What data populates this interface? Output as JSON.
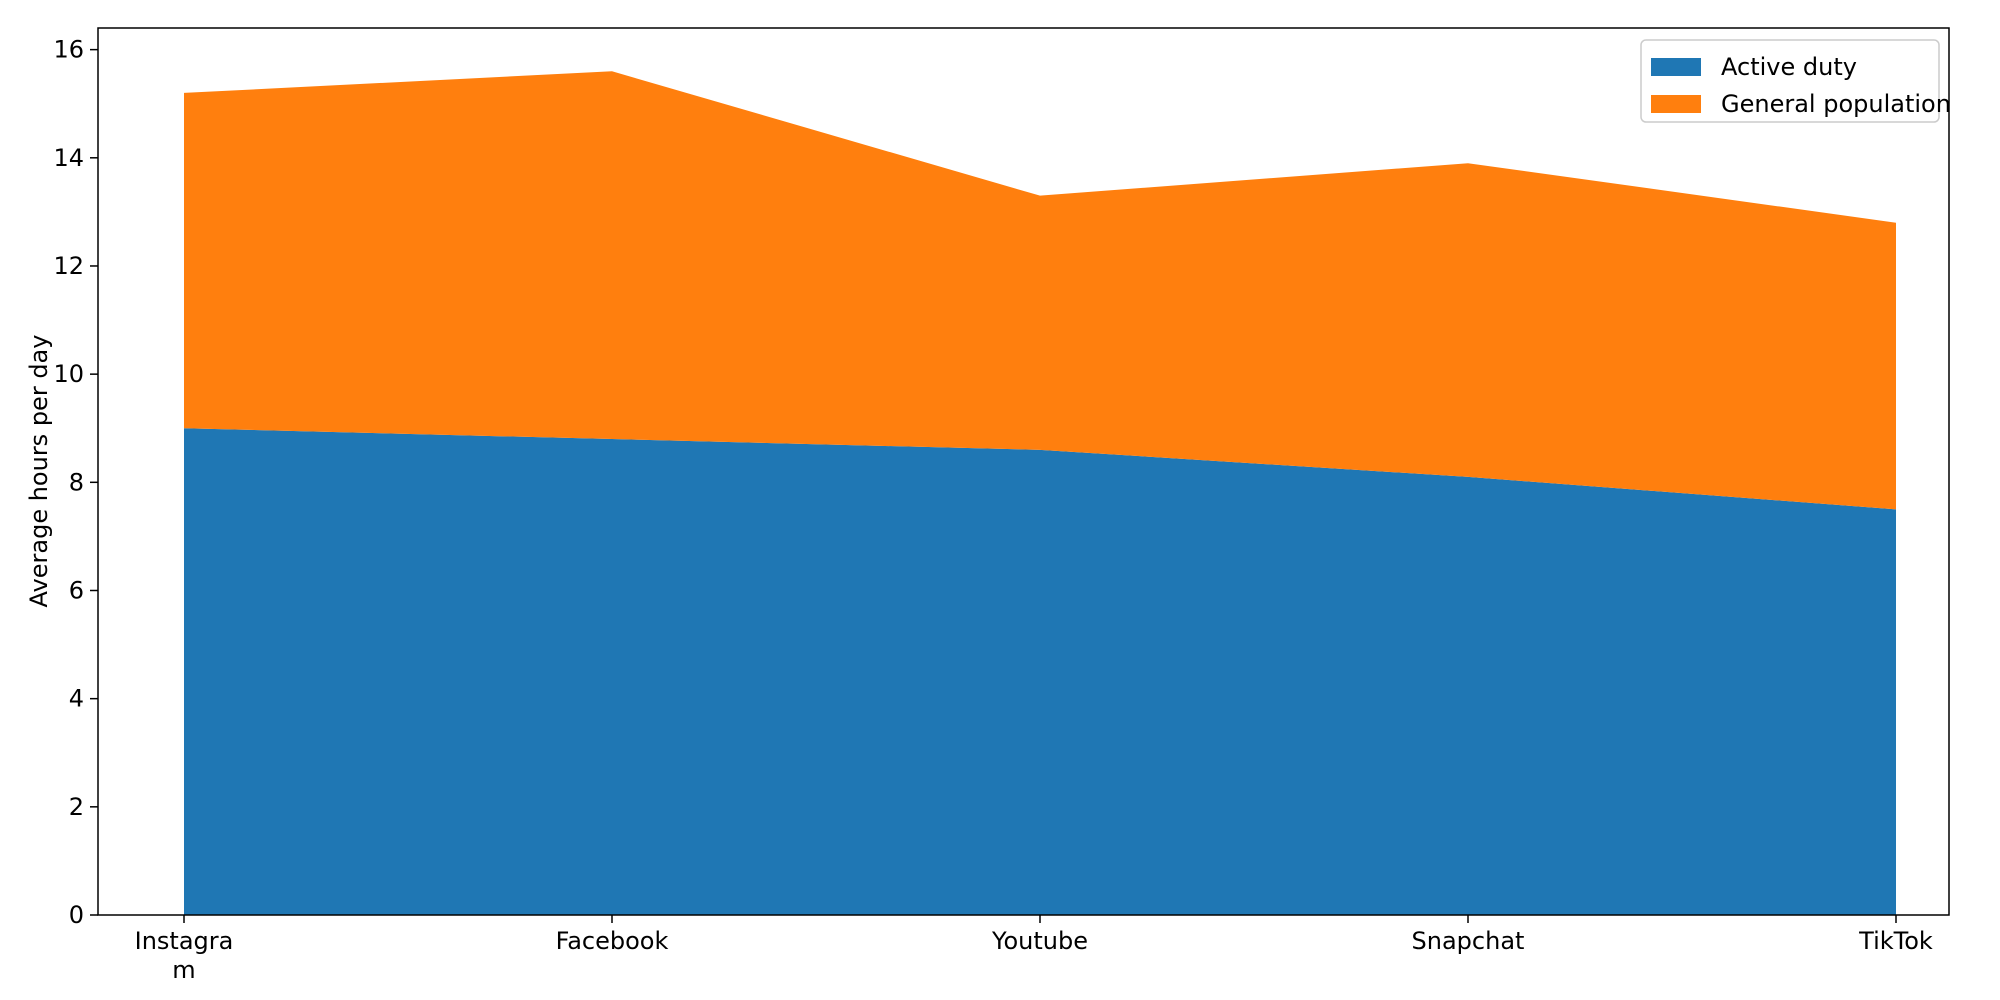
{
  "chart_data": {
    "type": "area",
    "stacked": true,
    "categories": [
      [
        "Instagra",
        "m"
      ],
      [
        "Facebook"
      ],
      [
        "Youtube"
      ],
      [
        "Snapchat"
      ],
      [
        "TikTok"
      ]
    ],
    "series": [
      {
        "name": "Active duty",
        "color": "#1f77b4",
        "values": [
          9.0,
          8.8,
          8.6,
          8.1,
          7.5
        ]
      },
      {
        "name": "General population",
        "color": "#ff7f0e",
        "values": [
          6.2,
          6.8,
          4.7,
          5.8,
          5.3
        ]
      }
    ],
    "ylabel": "Average hours per day",
    "ylim": [
      0,
      16.4
    ],
    "yticks": [
      0,
      2,
      4,
      6,
      8,
      10,
      12,
      14,
      16
    ],
    "grid": false,
    "legend": "top-right"
  }
}
